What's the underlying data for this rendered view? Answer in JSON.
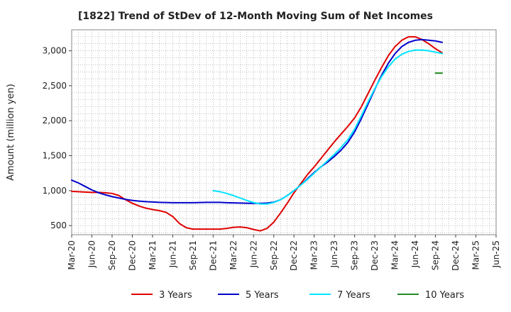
{
  "chart_data": {
    "type": "line",
    "title": "[1822]  Trend of StDev of 12-Month Moving Sum of Net Incomes",
    "xlabel": "",
    "ylabel": "Amount (million yen)",
    "ylim": [
      370,
      3300
    ],
    "yticks": [
      500,
      1000,
      1500,
      2000,
      2500,
      3000
    ],
    "ytick_labels": [
      "500",
      "1,000",
      "1,500",
      "2,000",
      "2,500",
      "3,000"
    ],
    "xtick_labels": [
      "Mar-20",
      "Jun-20",
      "Sep-20",
      "Dec-20",
      "Mar-21",
      "Jun-21",
      "Sep-21",
      "Dec-21",
      "Mar-22",
      "Jun-22",
      "Sep-22",
      "Dec-22",
      "Mar-23",
      "Jun-23",
      "Sep-23",
      "Dec-23",
      "Mar-24",
      "Jun-24",
      "Sep-24",
      "Dec-24",
      "Mar-25",
      "Jun-25"
    ],
    "grid": true,
    "legend_position": "bottom",
    "series": [
      {
        "name": "3 Years",
        "color": "#e00000",
        "points": [
          [
            0,
            990
          ],
          [
            1,
            985
          ],
          [
            2,
            980
          ],
          [
            3,
            975
          ],
          [
            4,
            975
          ],
          [
            5,
            970
          ],
          [
            6,
            960
          ],
          [
            7,
            930
          ],
          [
            8,
            870
          ],
          [
            9,
            820
          ],
          [
            10,
            780
          ],
          [
            11,
            750
          ],
          [
            12,
            730
          ],
          [
            13,
            715
          ],
          [
            14,
            690
          ],
          [
            15,
            630
          ],
          [
            16,
            530
          ],
          [
            17,
            470
          ],
          [
            18,
            450
          ],
          [
            19,
            450
          ],
          [
            20,
            450
          ],
          [
            21,
            450
          ],
          [
            22,
            450
          ],
          [
            23,
            460
          ],
          [
            24,
            475
          ],
          [
            25,
            480
          ],
          [
            26,
            470
          ],
          [
            27,
            445
          ],
          [
            28,
            425
          ],
          [
            29,
            460
          ],
          [
            30,
            550
          ],
          [
            31,
            680
          ],
          [
            32,
            820
          ],
          [
            33,
            970
          ],
          [
            34,
            1100
          ],
          [
            35,
            1230
          ],
          [
            36,
            1340
          ],
          [
            37,
            1460
          ],
          [
            38,
            1580
          ],
          [
            39,
            1700
          ],
          [
            40,
            1810
          ],
          [
            41,
            1920
          ],
          [
            42,
            2040
          ],
          [
            43,
            2200
          ],
          [
            44,
            2390
          ],
          [
            45,
            2580
          ],
          [
            46,
            2760
          ],
          [
            47,
            2930
          ],
          [
            48,
            3060
          ],
          [
            49,
            3150
          ],
          [
            50,
            3200
          ],
          [
            51,
            3200
          ],
          [
            52,
            3160
          ],
          [
            53,
            3100
          ],
          [
            54,
            3030
          ],
          [
            55,
            2970
          ]
        ]
      },
      {
        "name": "5 Years",
        "color": "#0000cc",
        "points": [
          [
            0,
            1150
          ],
          [
            1,
            1110
          ],
          [
            2,
            1060
          ],
          [
            3,
            1010
          ],
          [
            4,
            970
          ],
          [
            5,
            940
          ],
          [
            6,
            915
          ],
          [
            7,
            895
          ],
          [
            8,
            875
          ],
          [
            9,
            860
          ],
          [
            10,
            850
          ],
          [
            11,
            843
          ],
          [
            12,
            838
          ],
          [
            13,
            833
          ],
          [
            14,
            830
          ],
          [
            15,
            828
          ],
          [
            16,
            827
          ],
          [
            17,
            827
          ],
          [
            18,
            828
          ],
          [
            19,
            830
          ],
          [
            20,
            832
          ],
          [
            21,
            833
          ],
          [
            22,
            832
          ],
          [
            23,
            828
          ],
          [
            24,
            825
          ],
          [
            25,
            822
          ],
          [
            26,
            820
          ],
          [
            27,
            818
          ],
          [
            28,
            818
          ],
          [
            29,
            822
          ],
          [
            30,
            835
          ],
          [
            31,
            870
          ],
          [
            32,
            930
          ],
          [
            33,
            1000
          ],
          [
            34,
            1080
          ],
          [
            35,
            1170
          ],
          [
            36,
            1260
          ],
          [
            37,
            1340
          ],
          [
            38,
            1410
          ],
          [
            39,
            1490
          ],
          [
            40,
            1580
          ],
          [
            41,
            1690
          ],
          [
            42,
            1840
          ],
          [
            43,
            2030
          ],
          [
            44,
            2240
          ],
          [
            45,
            2450
          ],
          [
            46,
            2650
          ],
          [
            47,
            2820
          ],
          [
            48,
            2960
          ],
          [
            49,
            3060
          ],
          [
            50,
            3120
          ],
          [
            51,
            3150
          ],
          [
            52,
            3160
          ],
          [
            53,
            3150
          ],
          [
            54,
            3140
          ],
          [
            55,
            3120
          ]
        ]
      },
      {
        "name": "7 Years",
        "color": "#00e5ff",
        "points": [
          [
            21,
            1000
          ],
          [
            22,
            985
          ],
          [
            23,
            960
          ],
          [
            24,
            930
          ],
          [
            25,
            895
          ],
          [
            26,
            860
          ],
          [
            27,
            830
          ],
          [
            28,
            810
          ],
          [
            29,
            810
          ],
          [
            30,
            830
          ],
          [
            31,
            870
          ],
          [
            32,
            930
          ],
          [
            33,
            1000
          ],
          [
            34,
            1080
          ],
          [
            35,
            1160
          ],
          [
            36,
            1250
          ],
          [
            37,
            1340
          ],
          [
            38,
            1430
          ],
          [
            39,
            1520
          ],
          [
            40,
            1620
          ],
          [
            41,
            1730
          ],
          [
            42,
            1880
          ],
          [
            43,
            2070
          ],
          [
            44,
            2270
          ],
          [
            45,
            2460
          ],
          [
            46,
            2630
          ],
          [
            47,
            2770
          ],
          [
            48,
            2880
          ],
          [
            49,
            2950
          ],
          [
            50,
            2990
          ],
          [
            51,
            3010
          ],
          [
            52,
            3010
          ],
          [
            53,
            3000
          ],
          [
            54,
            2980
          ],
          [
            55,
            2960
          ]
        ]
      },
      {
        "name": "10 Years",
        "color": "#228b22",
        "points": [
          [
            54,
            2680
          ],
          [
            55,
            2680
          ]
        ]
      }
    ]
  }
}
